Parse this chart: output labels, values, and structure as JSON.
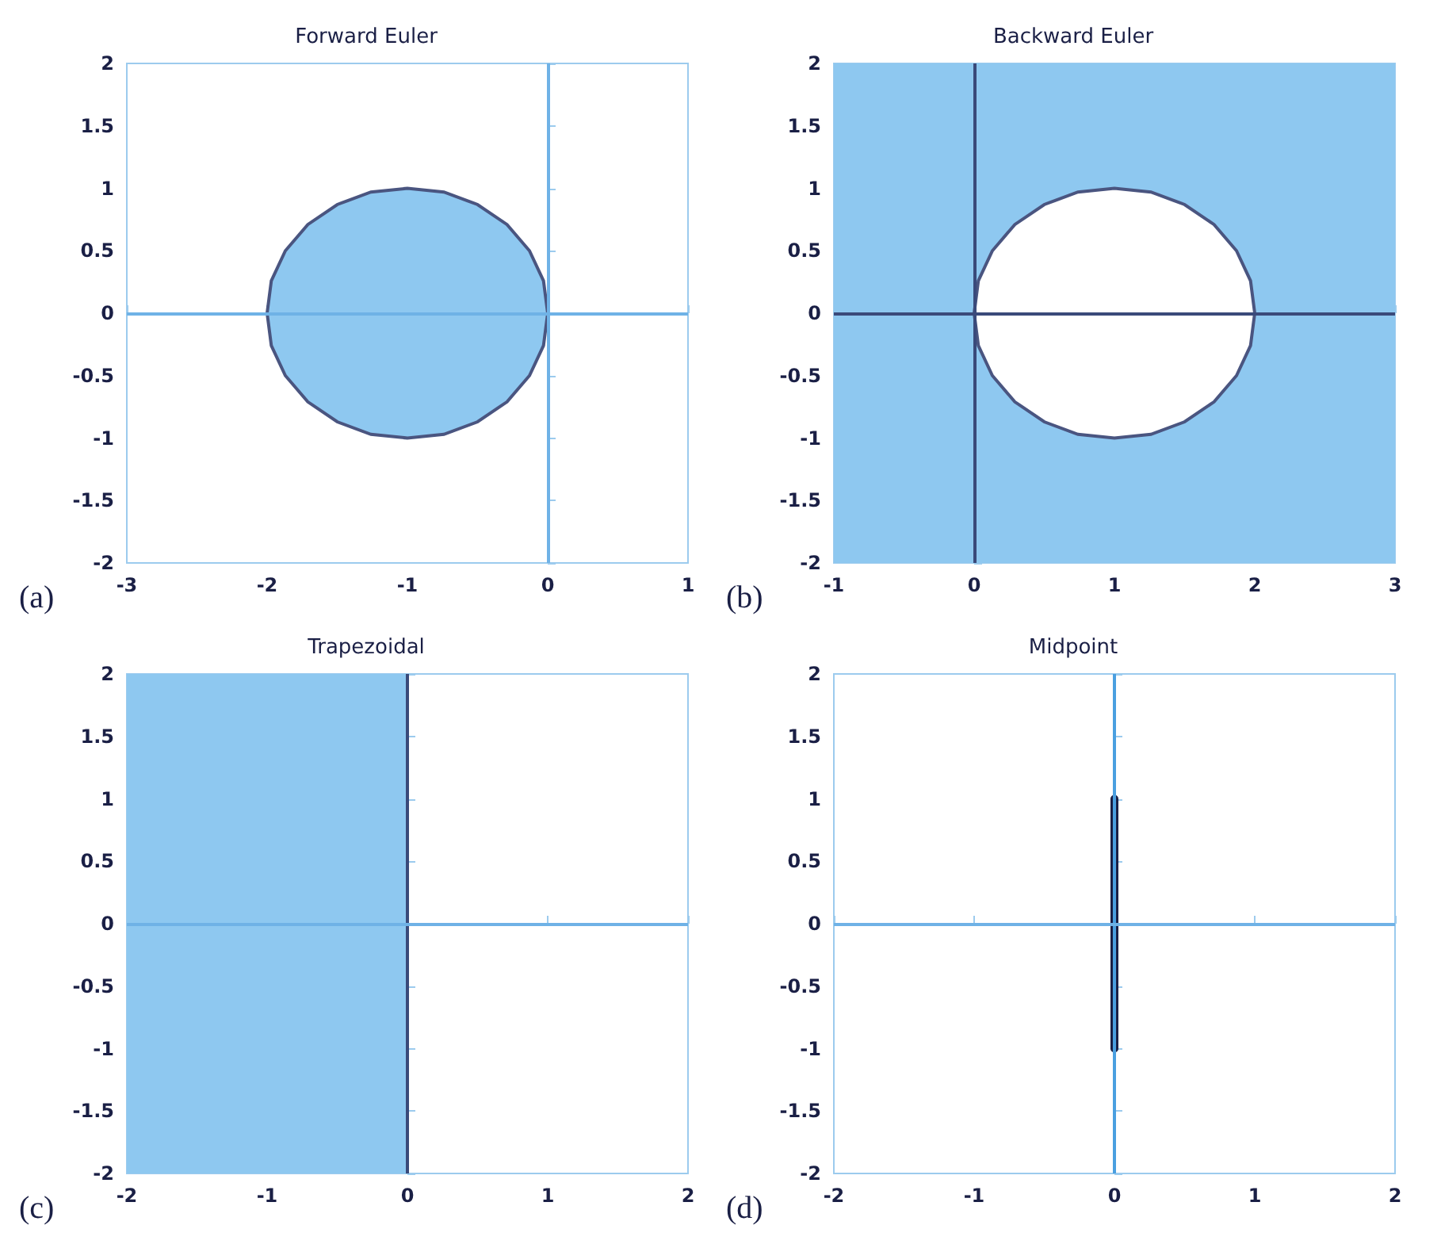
{
  "chart_data": [
    {
      "type": "area",
      "title": "Forward Euler",
      "annotations": [
        "(a)"
      ],
      "xlim": [
        -3,
        1
      ],
      "ylim": [
        -2,
        2
      ],
      "xticks": [
        -3,
        -2,
        -1,
        0,
        1
      ],
      "yticks": [
        -2,
        -1.5,
        -1,
        -0.5,
        0,
        0.5,
        1,
        1.5,
        2
      ],
      "series": [
        {
          "color": "#8ec8f0",
          "x": [
            0,
            -0.03,
            -0.13,
            -0.29,
            -0.5,
            -0.74,
            -1,
            -1.26,
            -1.5,
            -1.71,
            -1.87,
            -1.97,
            -2,
            -1.97,
            -1.87,
            -1.71,
            -1.5,
            -1.26,
            -1,
            -0.74,
            -0.5,
            -0.29,
            -0.13,
            -0.03
          ],
          "values": [
            0,
            0.26,
            0.5,
            0.71,
            0.87,
            0.97,
            1,
            0.97,
            0.87,
            0.71,
            0.5,
            0.26,
            0,
            -0.26,
            -0.5,
            -0.71,
            -0.87,
            -0.97,
            -1,
            -0.97,
            -0.87,
            -0.71,
            -0.5,
            -0.26
          ]
        }
      ],
      "ref_lines": [
        {
          "axis": "x",
          "value": 0,
          "color": "#6fb2e6"
        },
        {
          "axis": "y",
          "value": 0,
          "color": "#6fb2e6"
        }
      ]
    },
    {
      "type": "area",
      "title": "Backward Euler",
      "annotations": [
        "(b)"
      ],
      "xlim": [
        -1,
        3
      ],
      "ylim": [
        -2,
        2
      ],
      "xticks": [
        -1,
        0,
        1,
        2,
        3
      ],
      "yticks": [
        -2,
        -1.5,
        -1,
        -0.5,
        0,
        0.5,
        1,
        1.5,
        2
      ],
      "bands": [
        {
          "axis": "x",
          "from": -1,
          "to": 3,
          "color": "#8ec8f0"
        }
      ],
      "series": [
        {
          "color": "#ffffff",
          "x": [
            2,
            1.97,
            1.87,
            1.71,
            1.5,
            1.26,
            1,
            0.74,
            0.5,
            0.29,
            0.13,
            0.03,
            0,
            0.03,
            0.13,
            0.29,
            0.5,
            0.74,
            1,
            1.26,
            1.5,
            1.71,
            1.87,
            1.97
          ],
          "values": [
            0,
            0.26,
            0.5,
            0.71,
            0.87,
            0.97,
            1,
            0.97,
            0.87,
            0.71,
            0.5,
            0.26,
            0,
            -0.26,
            -0.5,
            -0.71,
            -0.87,
            -0.97,
            -1,
            -0.97,
            -0.87,
            -0.71,
            -0.5,
            -0.26
          ]
        }
      ],
      "ref_lines": [
        {
          "axis": "x",
          "value": 0,
          "color": "#3a4a7a"
        },
        {
          "axis": "y",
          "value": 0,
          "color": "#3a4a7a"
        }
      ]
    },
    {
      "type": "area",
      "title": "Trapezoidal",
      "annotations": [
        "(c)"
      ],
      "xlim": [
        -2,
        2
      ],
      "ylim": [
        -2,
        2
      ],
      "xticks": [
        -2,
        -1,
        0,
        1,
        2
      ],
      "yticks": [
        -2,
        -1.5,
        -1,
        -0.5,
        0,
        0.5,
        1,
        1.5,
        2
      ],
      "bands": [
        {
          "axis": "x",
          "from": -2,
          "to": 0,
          "color": "#8ec8f0"
        }
      ],
      "ref_lines": [
        {
          "axis": "x",
          "value": 0,
          "color": "#3a4a7a"
        },
        {
          "axis": "y",
          "value": 0,
          "color": "#6fb2e6"
        }
      ]
    },
    {
      "type": "line",
      "title": "Midpoint",
      "annotations": [
        "(d)"
      ],
      "xlim": [
        -2,
        2
      ],
      "ylim": [
        -2,
        2
      ],
      "xticks": [
        -2,
        -1,
        0,
        1,
        2
      ],
      "yticks": [
        -2,
        -1.5,
        -1,
        -0.5,
        0,
        0.5,
        1,
        1.5,
        2
      ],
      "series": [
        {
          "color": "#1a1f45",
          "x": [
            0,
            0
          ],
          "values": [
            -1,
            1
          ]
        }
      ],
      "ref_lines": [
        {
          "axis": "x",
          "value": 0,
          "color": "#4a9fe0"
        },
        {
          "axis": "y",
          "value": 0,
          "color": "#6fb2e6"
        }
      ]
    }
  ]
}
